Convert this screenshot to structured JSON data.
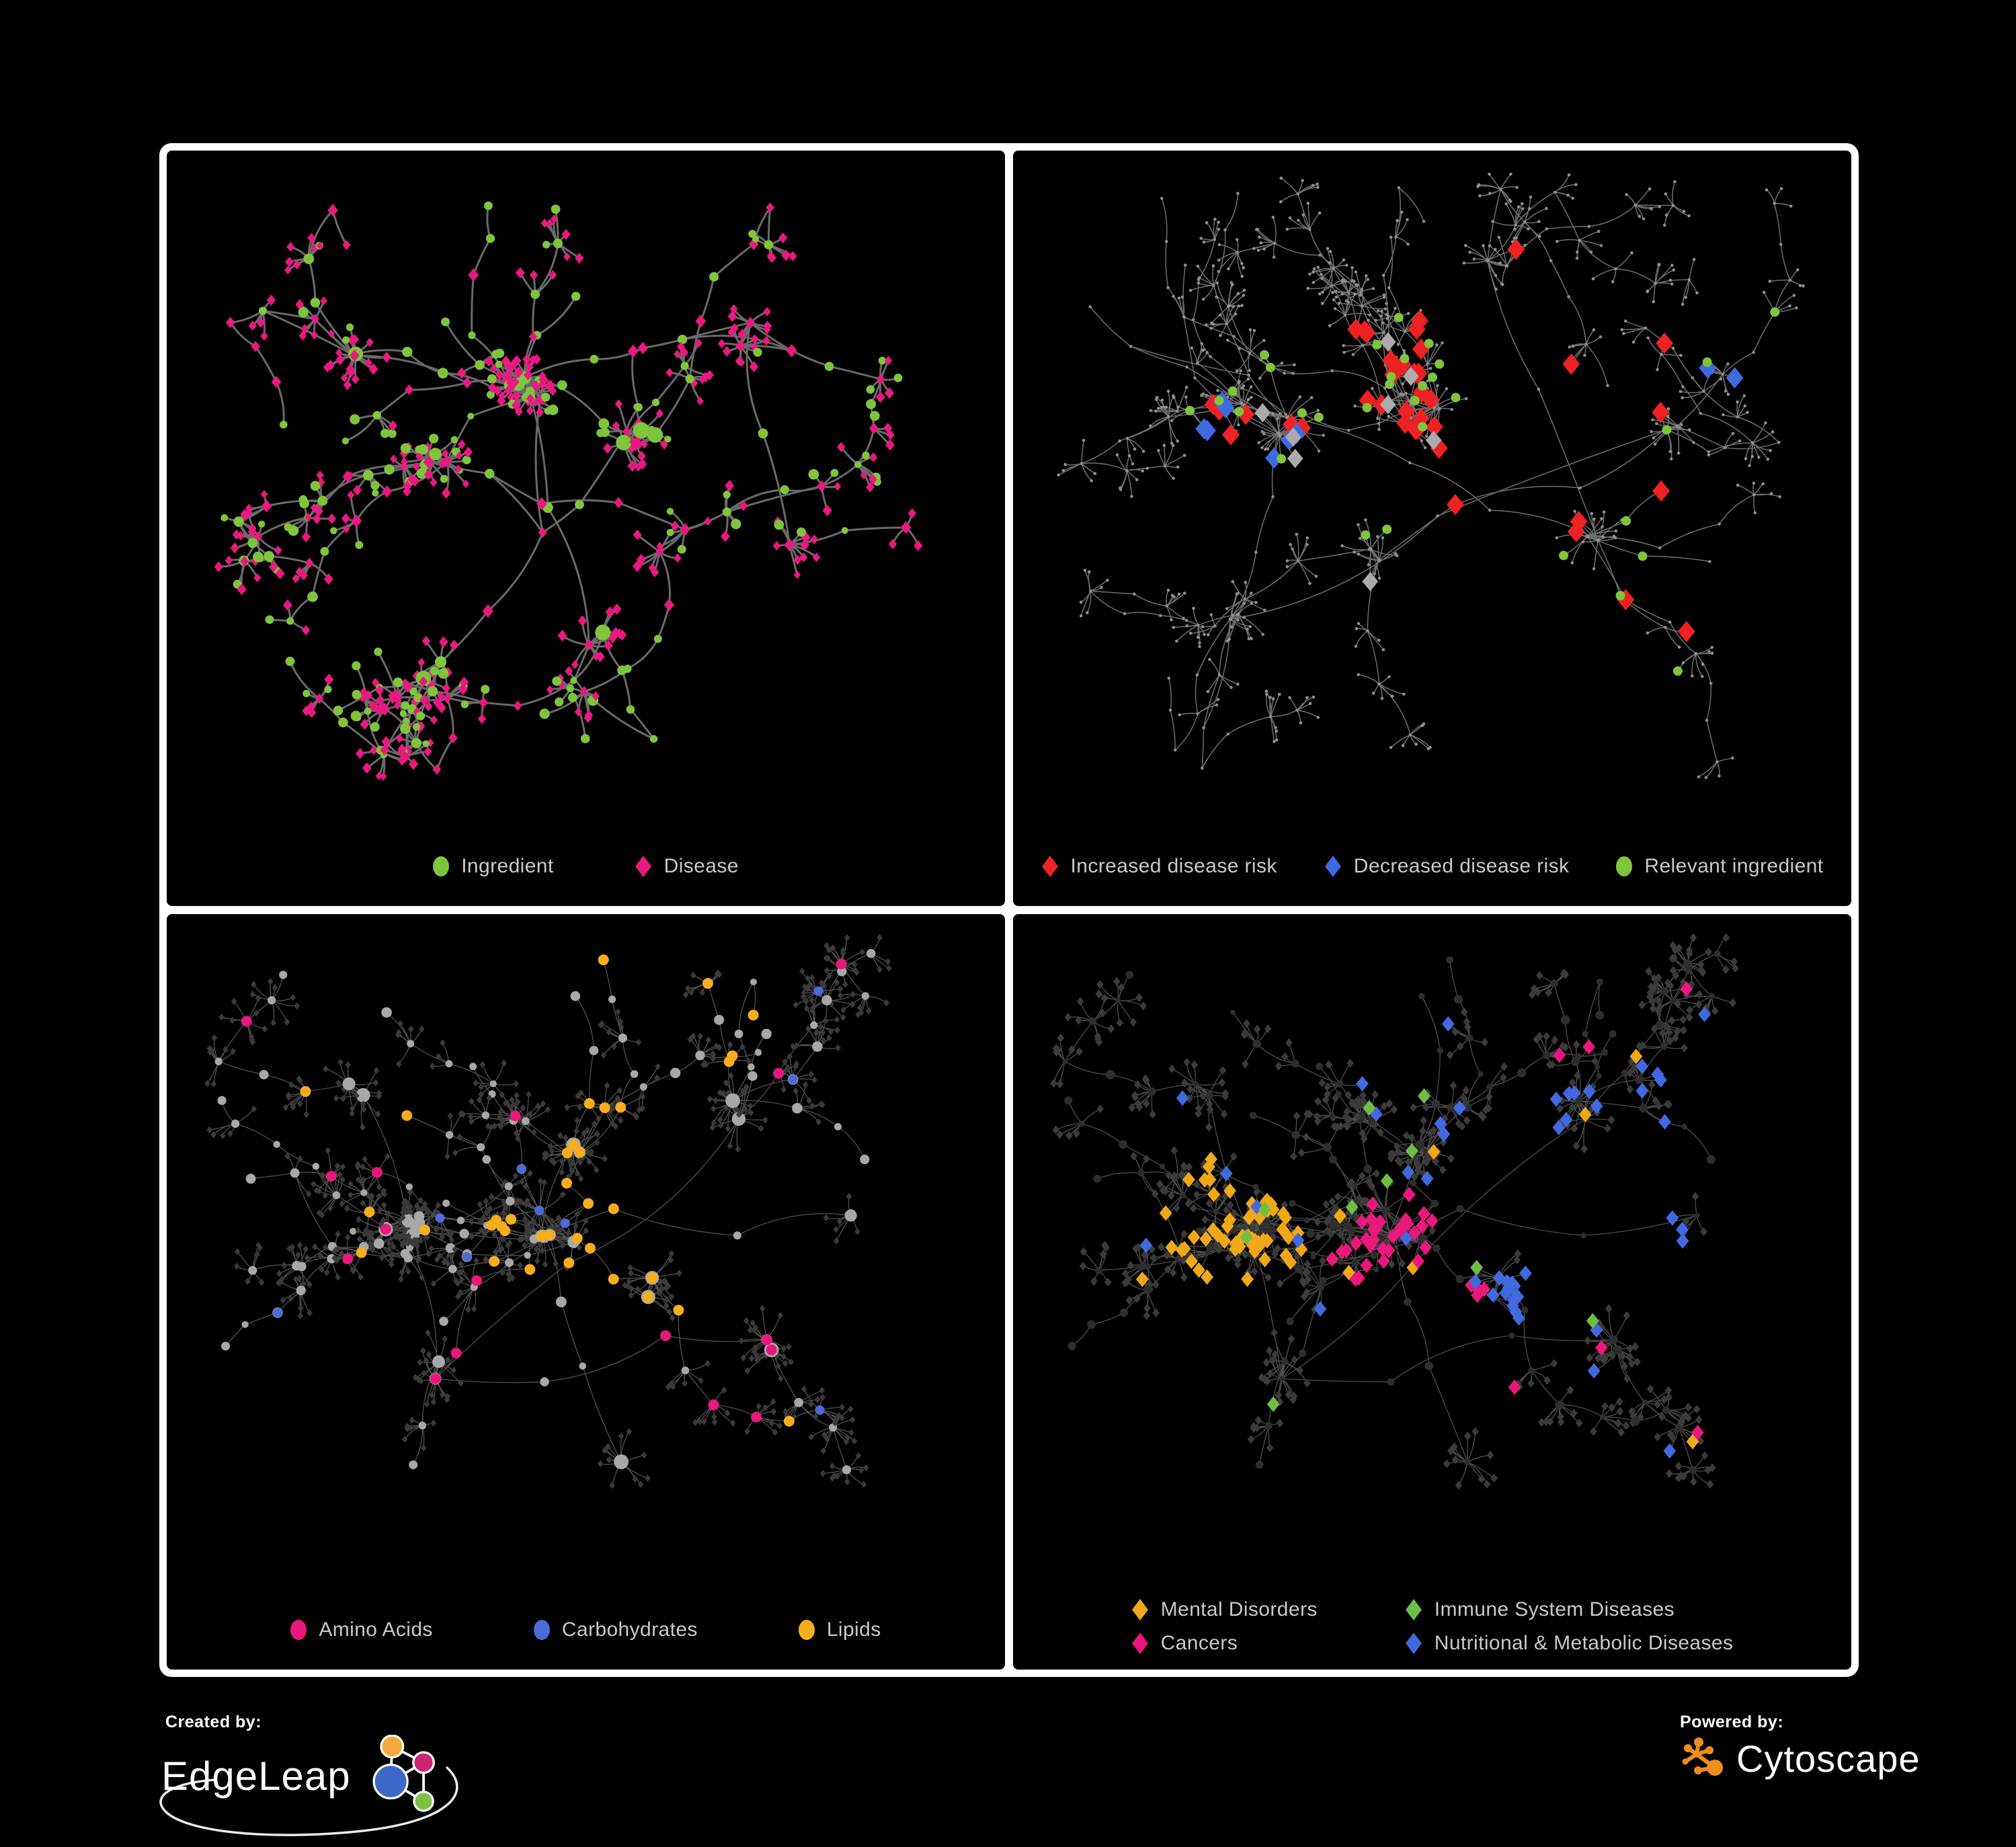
{
  "footer": {
    "created_by_label": "Created by:",
    "created_by_brand": "EdgeLeap",
    "powered_by_label": "Powered by:",
    "powered_by_brand": "Cytoscape",
    "cytoscape_color": "#F08C1E",
    "edgeleap_logo_colors": {
      "orange": "#F4A73B",
      "pink": "#CC2470",
      "blue": "#3E68C8",
      "green": "#7DC242"
    }
  },
  "panels": [
    {
      "id": "ingredient-disease",
      "legend_layout": "row",
      "legend_gap": 120,
      "legend": [
        {
          "label": "Ingredient",
          "shape": "circle",
          "color": "#7FC53C"
        },
        {
          "label": "Disease",
          "shape": "diamond",
          "color": "#E81A80"
        }
      ],
      "net": {
        "seed": 11,
        "clusters": [
          [
            0.44,
            0.34,
            5,
            60
          ],
          [
            0.56,
            0.44,
            4,
            40
          ],
          [
            0.3,
            0.46,
            3,
            40
          ],
          [
            0.22,
            0.3,
            2,
            30
          ],
          [
            0.52,
            0.74,
            2,
            26
          ],
          [
            0.3,
            0.8,
            2,
            22
          ],
          [
            0.7,
            0.26,
            2,
            28
          ],
          [
            0.76,
            0.6,
            1,
            16
          ],
          [
            0.62,
            0.6,
            2,
            30
          ]
        ],
        "leafMin": 5,
        "leafMax": 13,
        "branches": 26,
        "stepMin": 55,
        "stepMax": 100,
        "burstProb": 0.5,
        "burstMax": 8,
        "cross": 30,
        "graphBottom": 960
      },
      "edge": {
        "color": "#707070",
        "width": 3,
        "opacity": 0.95
      },
      "style": {
        "kind": "mixed",
        "circleColor": "#7FC53C",
        "diamondColor": "#E81A80",
        "internalCircleProb": 0.62,
        "leafCircleProb": 0.22
      },
      "highlights": []
    },
    {
      "id": "disease-risk",
      "legend_layout": "row",
      "legend_gap": 70,
      "legend": [
        {
          "label": "Increased disease risk",
          "shape": "diamond",
          "color": "#EE2222"
        },
        {
          "label": "Decreased disease risk",
          "shape": "diamond",
          "color": "#3F6BE0"
        },
        {
          "label": "Relevant ingredient",
          "shape": "circle",
          "color": "#7FC53C"
        }
      ],
      "net": {
        "seed": 7,
        "clusters": [
          [
            0.3,
            0.42,
            4,
            46
          ],
          [
            0.5,
            0.4,
            5,
            55
          ],
          [
            0.7,
            0.58,
            2,
            26
          ],
          [
            0.24,
            0.7,
            2,
            24
          ],
          [
            0.58,
            0.14,
            2,
            22
          ],
          [
            0.82,
            0.4,
            2,
            22
          ],
          [
            0.42,
            0.62,
            2,
            26
          ]
        ],
        "leafMin": 4,
        "leafMax": 12,
        "branches": 34,
        "stepMin": 60,
        "stepMax": 110,
        "burstProb": 0.5,
        "burstMax": 9,
        "cross": 26,
        "graphBottom": 960
      },
      "edge": {
        "color": "#8A8A8A",
        "width": 1.5,
        "opacity": 0.8
      },
      "style": {
        "kind": "plain",
        "dotColor": "#8F8F8F",
        "dotR": 2.3
      },
      "highlights": [
        {
          "shape": "diamond",
          "color": "#EE2222",
          "size": 11,
          "on": "any",
          "count": 22,
          "region": [
            0.5,
            0.4,
            0.16
          ]
        },
        {
          "shape": "diamond",
          "color": "#EE2222",
          "size": 11,
          "on": "any",
          "count": 7,
          "region": [
            0.3,
            0.42,
            0.12
          ]
        },
        {
          "shape": "diamond",
          "color": "#EE2222",
          "size": 11,
          "on": "any",
          "count": 5,
          "region": [
            0.68,
            0.5,
            0.18
          ]
        },
        {
          "shape": "diamond",
          "color": "#EE2222",
          "size": 11,
          "on": "any",
          "count": 2,
          "region": [
            0.76,
            0.74,
            0.07
          ]
        },
        {
          "shape": "diamond",
          "color": "#EE2222",
          "size": 11,
          "on": "any",
          "count": 3,
          "region": [
            0.62,
            0.3,
            0.2
          ]
        },
        {
          "shape": "diamond",
          "color": "#3F6BE0",
          "size": 11,
          "on": "any",
          "count": 7,
          "region": [
            0.27,
            0.47,
            0.1
          ]
        },
        {
          "shape": "diamond",
          "color": "#3F6BE0",
          "size": 11,
          "on": "any",
          "count": 2,
          "region": [
            0.86,
            0.3,
            0.05
          ]
        },
        {
          "shape": "diamond",
          "color": "#ABABAB",
          "size": 10,
          "on": "any",
          "count": 5,
          "region": [
            0.45,
            0.48,
            0.22
          ]
        },
        {
          "shape": "diamond",
          "color": "#ABABAB",
          "size": 10,
          "on": "any",
          "count": 3,
          "region": [
            0.3,
            0.4,
            0.12
          ]
        },
        {
          "shape": "circle",
          "color": "#7FC53C",
          "size": 7,
          "on": "any",
          "count": 16,
          "region": [
            0.48,
            0.42,
            0.16
          ]
        },
        {
          "shape": "circle",
          "color": "#7FC53C",
          "size": 7,
          "on": "any",
          "count": 8,
          "region": [
            0.3,
            0.42,
            0.14
          ]
        },
        {
          "shape": "circle",
          "color": "#7FC53C",
          "size": 7,
          "on": "any",
          "count": 4,
          "region": [
            0.72,
            0.74,
            0.12
          ]
        },
        {
          "shape": "circle",
          "color": "#7FC53C",
          "size": 7,
          "on": "any",
          "count": 4,
          "region": [
            0.8,
            0.45,
            0.25
          ]
        }
      ]
    },
    {
      "id": "nutrient-classes",
      "legend_layout": "row",
      "legend_gap": 150,
      "legend": [
        {
          "label": "Amino Acids",
          "shape": "circle",
          "color": "#E8187C"
        },
        {
          "label": "Carbohydrates",
          "shape": "circle",
          "color": "#4A6BD8"
        },
        {
          "label": "Lipids",
          "shape": "circle",
          "color": "#F7AD1C"
        }
      ],
      "net": {
        "seed": 21,
        "clusters": [
          [
            0.26,
            0.46,
            5,
            55
          ],
          [
            0.45,
            0.48,
            5,
            50
          ],
          [
            0.5,
            0.35,
            3,
            36
          ],
          [
            0.58,
            0.57,
            2,
            22
          ],
          [
            0.3,
            0.7,
            2,
            24
          ],
          [
            0.74,
            0.66,
            2,
            26
          ],
          [
            0.2,
            0.24,
            2,
            26
          ],
          [
            0.7,
            0.28,
            2,
            30
          ],
          [
            0.55,
            0.85,
            1,
            16
          ],
          [
            0.85,
            0.45,
            1,
            14
          ]
        ],
        "leafMin": 6,
        "leafMax": 15,
        "branches": 30,
        "stepMin": 55,
        "stepMax": 100,
        "burstProb": 0.55,
        "burstMax": 10,
        "cross": 28,
        "graphBottom": 955
      },
      "edge": {
        "color": "#9F9F9F",
        "width": 1.3,
        "opacity": 0.5
      },
      "style": {
        "kind": "circles-gray",
        "circleColor": "#A8A8A8",
        "leafColor": "#3A3A3A",
        "leafSize": 4.2
      },
      "highlights": [
        {
          "shape": "circle",
          "color": "#F7AD1C",
          "size": 8,
          "on": "internal",
          "count": 24,
          "region": [
            0.5,
            0.35,
            0.08
          ]
        },
        {
          "shape": "circle",
          "color": "#F7AD1C",
          "size": 8,
          "on": "internal",
          "count": 12,
          "region": [
            0.45,
            0.5,
            0.1
          ]
        },
        {
          "shape": "circle",
          "color": "#F7AD1C",
          "size": 8,
          "on": "internal",
          "count": 8,
          "region": [
            0.58,
            0.57,
            0.06
          ]
        },
        {
          "shape": "circle",
          "color": "#F7AD1C",
          "size": 8,
          "on": "internal",
          "count": 12,
          "region": null
        },
        {
          "shape": "circle",
          "color": "#4A6BD8",
          "size": 7,
          "on": "internal",
          "count": 6,
          "region": [
            0.5,
            0.36,
            0.09
          ]
        },
        {
          "shape": "circle",
          "color": "#4A6BD8",
          "size": 7,
          "on": "internal",
          "count": 6,
          "region": null
        },
        {
          "shape": "circle",
          "color": "#E8187C",
          "size": 8,
          "on": "internal",
          "count": 5,
          "region": [
            0.72,
            0.66,
            0.12
          ]
        },
        {
          "shape": "circle",
          "color": "#E8187C",
          "size": 8,
          "on": "internal",
          "count": 5,
          "region": [
            0.3,
            0.75,
            0.25
          ]
        },
        {
          "shape": "circle",
          "color": "#E8187C",
          "size": 8,
          "on": "internal",
          "count": 6,
          "region": null
        }
      ]
    },
    {
      "id": "disease-classes",
      "legend_layout": "two-col",
      "legend_gap": 130,
      "legend": [
        {
          "label": "Mental Disorders",
          "shape": "diamond",
          "color": "#F0A818"
        },
        {
          "label": "Immune System Diseases",
          "shape": "diamond",
          "color": "#6FBE44"
        },
        {
          "label": "Cancers",
          "shape": "diamond",
          "color": "#E8187C"
        },
        {
          "label": "Nutritional & Metabolic Diseases",
          "shape": "diamond",
          "color": "#4169E0"
        }
      ],
      "netRef": 2,
      "edge": {
        "color": "#8C8C8C",
        "width": 1.3,
        "opacity": 0.55
      },
      "style": {
        "kind": "diamonds-dark",
        "circleColor": "#2E2E2E",
        "leafColor": "#3B3B3B",
        "leafSize": 5.2
      },
      "highlights": [
        {
          "shape": "diamond",
          "color": "#F0A818",
          "size": 8,
          "on": "leaf",
          "count": 55,
          "region": [
            0.25,
            0.47,
            0.1
          ]
        },
        {
          "shape": "diamond",
          "color": "#F0A818",
          "size": 8,
          "on": "leaf",
          "count": 10,
          "region": null
        },
        {
          "shape": "diamond",
          "color": "#E8187C",
          "size": 8,
          "on": "leaf",
          "count": 34,
          "region": [
            0.47,
            0.55,
            0.11
          ]
        },
        {
          "shape": "diamond",
          "color": "#E8187C",
          "size": 8,
          "on": "leaf",
          "count": 7,
          "region": [
            0.87,
            0.28,
            0.06
          ]
        },
        {
          "shape": "diamond",
          "color": "#E8187C",
          "size": 8,
          "on": "leaf",
          "count": 8,
          "region": null
        },
        {
          "shape": "diamond",
          "color": "#4169E0",
          "size": 8,
          "on": "leaf",
          "count": 15,
          "region": [
            0.6,
            0.6,
            0.06
          ]
        },
        {
          "shape": "diamond",
          "color": "#4169E0",
          "size": 8,
          "on": "leaf",
          "count": 13,
          "region": [
            0.8,
            0.33,
            0.14
          ]
        },
        {
          "shape": "diamond",
          "color": "#4169E0",
          "size": 8,
          "on": "leaf",
          "count": 9,
          "region": [
            0.45,
            0.22,
            0.22
          ]
        },
        {
          "shape": "diamond",
          "color": "#4169E0",
          "size": 8,
          "on": "leaf",
          "count": 12,
          "region": null
        },
        {
          "shape": "diamond",
          "color": "#6FBE44",
          "size": 8,
          "on": "leaf",
          "count": 10,
          "region": [
            0.45,
            0.5,
            0.3
          ]
        }
      ]
    }
  ]
}
